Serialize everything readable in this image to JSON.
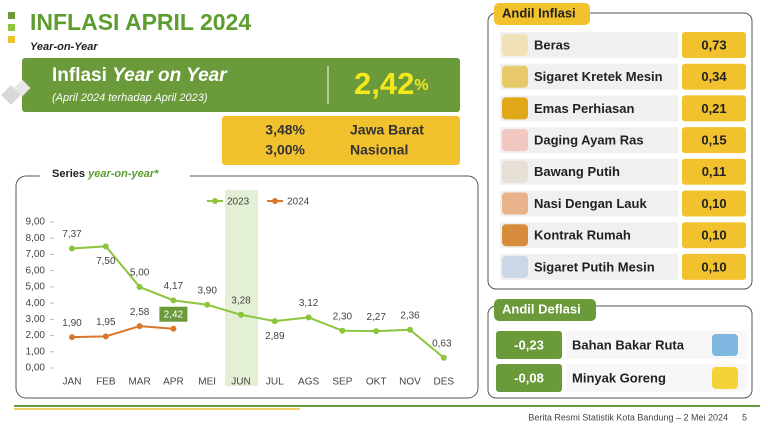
{
  "header": {
    "title": "INFLASI APRIL 2024",
    "subtitle": "Year-on-Year"
  },
  "summary": {
    "label": "Inflasi",
    "label_italic": "Year on Year",
    "note": "(April 2024 terhadap April 2023)",
    "value": "2,42",
    "unit": "%",
    "comparisons": [
      {
        "value": "3,48%",
        "region": "Jawa Barat"
      },
      {
        "value": "3,00%",
        "region": "Nasional"
      }
    ]
  },
  "chart_data": {
    "type": "line",
    "title": "Series",
    "title_italic": "year-on-year*",
    "categories": [
      "JAN",
      "FEB",
      "MAR",
      "APR",
      "MEI",
      "JUN",
      "JUL",
      "AGS",
      "SEP",
      "OKT",
      "NOV",
      "DES"
    ],
    "series": [
      {
        "name": "2023",
        "color": "#8cc43c",
        "values": [
          7.37,
          7.5,
          5.0,
          4.17,
          3.9,
          3.28,
          2.89,
          3.12,
          2.3,
          2.27,
          2.36,
          0.63
        ],
        "value_labels": [
          "7,37",
          "7,50",
          "5,00",
          "4,17",
          "3,90",
          "3,28",
          "2,89",
          "3,12",
          "2,30",
          "2,27",
          "2,36",
          "0,63"
        ]
      },
      {
        "name": "2024",
        "color": "#d9782c",
        "values": [
          1.9,
          1.95,
          2.58,
          2.42,
          null,
          null,
          null,
          null,
          null,
          null,
          null,
          null
        ],
        "value_labels": [
          "1,90",
          "1,95",
          "2,58",
          "2,42",
          null,
          null,
          null,
          null,
          null,
          null,
          null,
          null
        ]
      }
    ],
    "ylim": [
      0,
      9
    ],
    "yticks": [
      {
        "value": 0,
        "label": "0,00"
      },
      {
        "value": 1,
        "label": "1,00"
      },
      {
        "value": 2,
        "label": "2,00"
      },
      {
        "value": 3,
        "label": "3,00"
      },
      {
        "value": 4,
        "label": "4,00"
      },
      {
        "value": 5,
        "label": "5,00"
      },
      {
        "value": 6,
        "label": "6,00"
      },
      {
        "value": 7,
        "label": "7,00"
      },
      {
        "value": 8,
        "label": "8,00"
      },
      {
        "value": 9,
        "label": "9,00"
      }
    ]
  },
  "andil_inflasi": {
    "title": "Andil Inflasi",
    "items": [
      {
        "name": "Beras",
        "value": "0,73"
      },
      {
        "name": "Sigaret Kretek Mesin",
        "value": "0,34"
      },
      {
        "name": "Emas Perhiasan",
        "value": "0,21"
      },
      {
        "name": "Daging Ayam Ras",
        "value": "0,15"
      },
      {
        "name": "Bawang Putih",
        "value": "0,11"
      },
      {
        "name": "Nasi Dengan Lauk",
        "value": "0,10"
      },
      {
        "name": "Kontrak Rumah",
        "value": "0,10"
      },
      {
        "name": "Sigaret Putih Mesin",
        "value": "0,10"
      }
    ]
  },
  "andil_deflasi": {
    "title": "Andil Deflasi",
    "items": [
      {
        "name": "Bahan Bakar Ruta",
        "value": "-0,23"
      },
      {
        "name": "Minyak Goreng",
        "value": "-0,08"
      }
    ]
  },
  "footer": {
    "source": "Berita Resmi Statistik Kota Bandung –  2 Mei 2024",
    "page": "5"
  }
}
